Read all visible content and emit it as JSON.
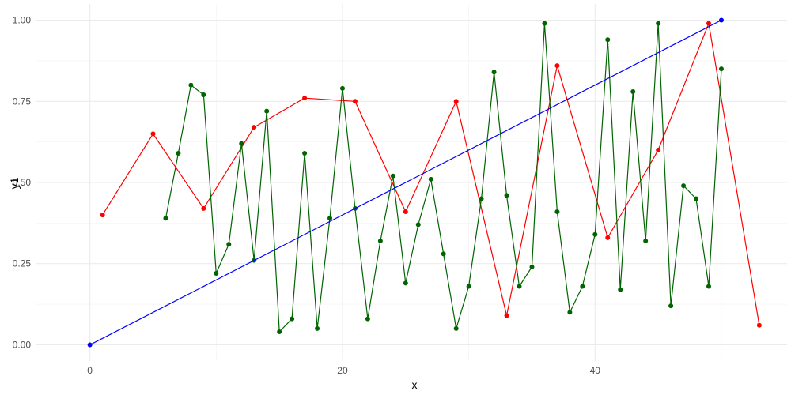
{
  "chart_data": {
    "type": "line",
    "title": "",
    "xlabel": "x",
    "ylabel": "y1",
    "xlim": [
      -4.3,
      55.2
    ],
    "ylim": [
      -0.05,
      1.05
    ],
    "x_ticks": [
      0,
      20,
      40
    ],
    "y_ticks": [
      0.0,
      0.25,
      0.5,
      0.75,
      1.0
    ],
    "x_tick_labels": [
      "0",
      "20",
      "40"
    ],
    "y_tick_labels": [
      "0.00",
      "0.25",
      "0.50",
      "0.75",
      "1.00"
    ],
    "grid": true,
    "legend": "none",
    "series": [
      {
        "color": "#ff0000",
        "x": [
          1,
          5,
          9,
          13,
          17,
          21,
          25,
          29,
          33,
          37,
          41,
          45,
          49,
          53
        ],
        "y": [
          0.4,
          0.65,
          0.42,
          0.67,
          0.76,
          0.75,
          0.41,
          0.75,
          0.09,
          0.86,
          0.33,
          0.6,
          0.99,
          0.06
        ]
      },
      {
        "color": "#006400",
        "x": [
          6,
          7,
          8,
          9,
          10,
          11,
          12,
          13,
          14,
          15,
          16,
          17,
          18,
          19,
          20,
          21,
          22,
          23,
          24,
          25,
          26,
          27,
          28,
          29,
          30,
          31,
          32,
          33,
          34,
          35,
          36,
          37,
          38,
          39,
          40,
          41,
          42,
          43,
          44,
          45,
          46,
          47,
          48,
          49,
          50
        ],
        "y": [
          0.39,
          0.59,
          0.8,
          0.77,
          0.22,
          0.31,
          0.62,
          0.26,
          0.72,
          0.04,
          0.08,
          0.59,
          0.05,
          0.39,
          0.79,
          0.42,
          0.08,
          0.32,
          0.52,
          0.19,
          0.37,
          0.51,
          0.28,
          0.05,
          0.18,
          0.45,
          0.84,
          0.46,
          0.18,
          0.24,
          0.99,
          0.41,
          0.1,
          0.18,
          0.34,
          0.94,
          0.17,
          0.78,
          0.32,
          0.99,
          0.12,
          0.49,
          0.45,
          0.18,
          0.85
        ]
      },
      {
        "color": "#0000ff",
        "x": [
          0,
          50
        ],
        "y": [
          0.0,
          1.0
        ]
      }
    ]
  }
}
